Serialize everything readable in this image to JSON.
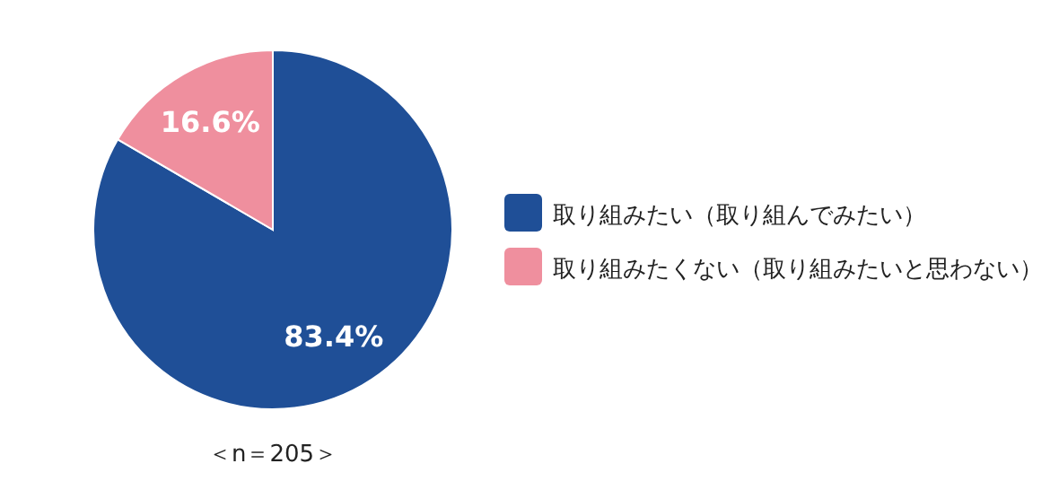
{
  "chart_data": {
    "type": "pie",
    "categories": [
      "取り組みたい（取り組んでみたい）",
      "取り組みたくない（取り組みたいと思わない）"
    ],
    "values": [
      83.4,
      16.6
    ],
    "colors": [
      "#1f4f97",
      "#ef8f9e"
    ],
    "value_labels": [
      "83.4%",
      "16.6%"
    ],
    "legend": "right",
    "annotations": [
      "＜n＝205＞"
    ]
  }
}
